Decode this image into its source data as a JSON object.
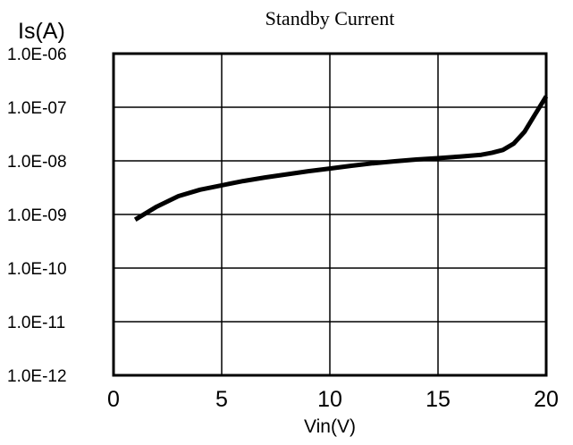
{
  "chart_data": {
    "type": "line",
    "title": "Standby Current",
    "xlabel": "Vin(V)",
    "ylabel": "Is(A)",
    "xlim": [
      0,
      20
    ],
    "ylim": [
      1e-12,
      1e-06
    ],
    "y_scale": "log",
    "grid": true,
    "x_ticks": [
      "0",
      "5",
      "10",
      "15",
      "20"
    ],
    "y_ticks": [
      "1.0E-12",
      "1.0E-11",
      "1.0E-10",
      "1.0E-09",
      "1.0E-08",
      "1.0E-07",
      "1.0E-06"
    ],
    "series": [
      {
        "x": [
          1,
          2,
          3,
          4,
          5,
          6,
          7,
          8,
          9,
          10,
          11,
          12,
          13,
          14,
          15,
          16,
          17,
          17.5,
          18,
          18.5,
          19,
          19.5,
          20
        ],
        "y": [
          8e-10,
          1.4e-09,
          2.2e-09,
          2.9e-09,
          3.5e-09,
          4.2e-09,
          4.9e-09,
          5.6e-09,
          6.4e-09,
          7.2e-09,
          8.1e-09,
          9e-09,
          9.8e-09,
          1.06e-08,
          1.12e-08,
          1.2e-08,
          1.3e-08,
          1.42e-08,
          1.6e-08,
          2.1e-08,
          3.5e-08,
          7.5e-08,
          1.6e-07
        ],
        "color": "#000000"
      }
    ]
  }
}
